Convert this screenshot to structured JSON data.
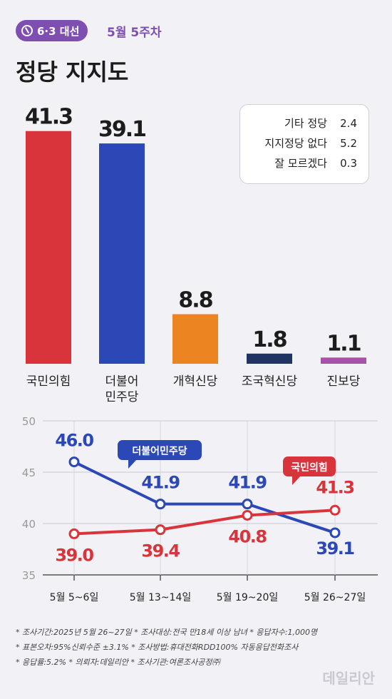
{
  "header": {
    "badge": "6·3 대선",
    "week": "5월 5주차",
    "title": "정당 지지도"
  },
  "others": [
    {
      "label": "기타 정당",
      "value": "2.4"
    },
    {
      "label": "지지정당 없다",
      "value": "5.2"
    },
    {
      "label": "잘 모르겠다",
      "value": "0.3"
    }
  ],
  "chart_data": [
    {
      "type": "bar",
      "categories": [
        "국민의힘",
        "더불어\n민주당",
        "개혁신당",
        "조국혁신당",
        "진보당"
      ],
      "values": [
        41.3,
        39.1,
        8.8,
        1.8,
        1.1
      ],
      "colors": [
        "#d9343b",
        "#2c48b7",
        "#ec8422",
        "#1f3461",
        "#a851a6"
      ]
    },
    {
      "type": "line",
      "x": [
        "5월 5~6일",
        "5월 13~14일",
        "5월 19~20일",
        "5월 26~27일"
      ],
      "ylim": [
        35,
        50
      ],
      "yticks": [
        35,
        40,
        45,
        50
      ],
      "series": [
        {
          "name": "더불어민주당",
          "values": [
            46.0,
            41.9,
            41.9,
            39.1
          ],
          "color": "#2c48b7"
        },
        {
          "name": "국민의힘",
          "values": [
            39.0,
            39.4,
            40.8,
            41.3
          ],
          "color": "#d9343b"
        }
      ]
    }
  ],
  "notes": [
    "* 조사기간:2025년 5월 26~27일 * 조사대상:전국 만18세 이상 남녀 * 응답자수:1,000명",
    "* 표본오차:95%신뢰수준 ±3.1% * 조사방법:휴대전화RDD100% 자동응답전화조사",
    "* 응답률:5.2% * 의뢰자:데일리안 * 조사기관:여론조사공정㈜"
  ],
  "logo": "데일리안"
}
